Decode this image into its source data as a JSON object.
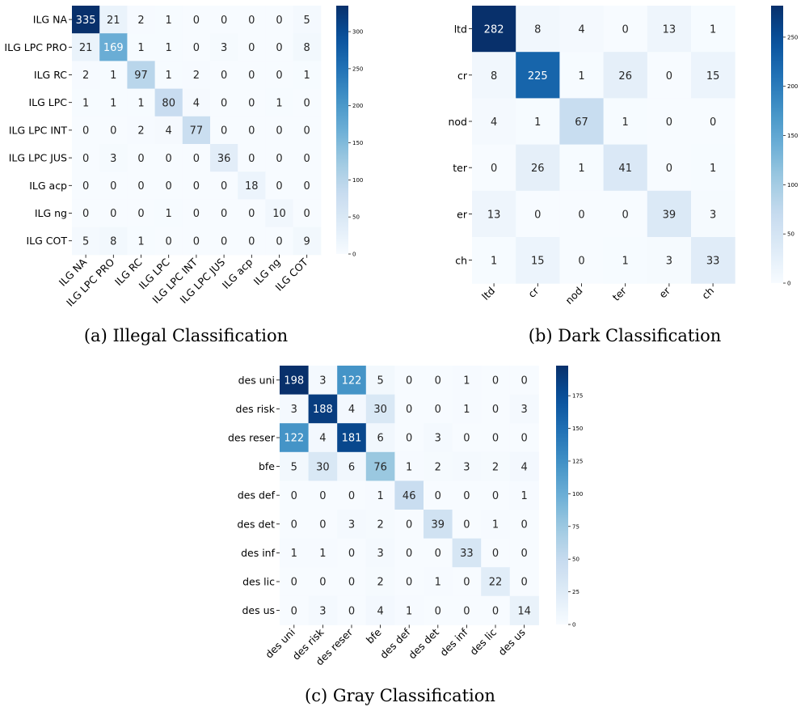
{
  "chart_data": [
    {
      "type": "heatmap",
      "caption": "(a) Illegal Classification",
      "rows": [
        "ILG NA",
        "ILG LPC PRO",
        "ILG RC",
        "ILG LPC",
        "ILG LPC INT",
        "ILG LPC JUS",
        "ILG acp",
        "ILG ng",
        "ILG COT"
      ],
      "cols": [
        "ILG NA",
        "ILG LPC PRO",
        "ILG RC",
        "ILG LPC",
        "ILG LPC INT",
        "ILG LPC JUS",
        "ILG acp",
        "ILG ng",
        "ILG COT"
      ],
      "values": [
        [
          335,
          21,
          2,
          1,
          0,
          0,
          0,
          0,
          5
        ],
        [
          21,
          169,
          1,
          1,
          0,
          3,
          0,
          0,
          8
        ],
        [
          2,
          1,
          97,
          1,
          2,
          0,
          0,
          0,
          1
        ],
        [
          1,
          1,
          1,
          80,
          4,
          0,
          0,
          1,
          0
        ],
        [
          0,
          0,
          2,
          4,
          77,
          0,
          0,
          0,
          0
        ],
        [
          0,
          3,
          0,
          0,
          0,
          36,
          0,
          0,
          0
        ],
        [
          0,
          0,
          0,
          0,
          0,
          0,
          18,
          0,
          0
        ],
        [
          0,
          0,
          0,
          1,
          0,
          0,
          0,
          10,
          0
        ],
        [
          5,
          8,
          1,
          0,
          0,
          0,
          0,
          0,
          9
        ]
      ],
      "colorbar": {
        "vmin": 0,
        "vmax": 335,
        "ticks": [
          0,
          50,
          100,
          150,
          200,
          250,
          300
        ]
      },
      "colormap": "Blues"
    },
    {
      "type": "heatmap",
      "caption": "(b) Dark Classification",
      "rows": [
        "ltd",
        "cr",
        "nod",
        "ter",
        "er",
        "ch"
      ],
      "cols": [
        "ltd",
        "cr",
        "nod",
        "ter",
        "er",
        "ch"
      ],
      "values": [
        [
          282,
          8,
          4,
          0,
          13,
          1
        ],
        [
          8,
          225,
          1,
          26,
          0,
          15
        ],
        [
          4,
          1,
          67,
          1,
          0,
          0
        ],
        [
          0,
          26,
          1,
          41,
          0,
          1
        ],
        [
          13,
          0,
          0,
          0,
          39,
          3
        ],
        [
          1,
          15,
          0,
          1,
          3,
          33
        ]
      ],
      "colorbar": {
        "vmin": 0,
        "vmax": 282,
        "ticks": [
          0,
          50,
          100,
          150,
          200,
          250
        ]
      },
      "colormap": "Blues"
    },
    {
      "type": "heatmap",
      "caption": "(c) Gray Classification",
      "rows": [
        "des uni",
        "des risk",
        "des reser",
        "bfe",
        "des def",
        "des det",
        "des inf",
        "des lic",
        "des us"
      ],
      "cols": [
        "des uni",
        "des risk",
        "des reser",
        "bfe",
        "des def",
        "des det",
        "des inf",
        "des lic",
        "des us"
      ],
      "values": [
        [
          198,
          3,
          122,
          5,
          0,
          0,
          1,
          0,
          0
        ],
        [
          3,
          188,
          4,
          30,
          0,
          0,
          1,
          0,
          3
        ],
        [
          122,
          4,
          181,
          6,
          0,
          3,
          0,
          0,
          0
        ],
        [
          5,
          30,
          6,
          76,
          1,
          2,
          3,
          2,
          4
        ],
        [
          0,
          0,
          0,
          1,
          46,
          0,
          0,
          0,
          1
        ],
        [
          0,
          0,
          3,
          2,
          0,
          39,
          0,
          1,
          0
        ],
        [
          1,
          1,
          0,
          3,
          0,
          0,
          33,
          0,
          0
        ],
        [
          0,
          0,
          0,
          2,
          0,
          1,
          0,
          22,
          0
        ],
        [
          0,
          3,
          0,
          4,
          1,
          0,
          0,
          0,
          14
        ]
      ],
      "colorbar": {
        "vmin": 0,
        "vmax": 198,
        "ticks": [
          0,
          25,
          50,
          75,
          100,
          125,
          150,
          175
        ]
      },
      "colormap": "Blues"
    }
  ]
}
